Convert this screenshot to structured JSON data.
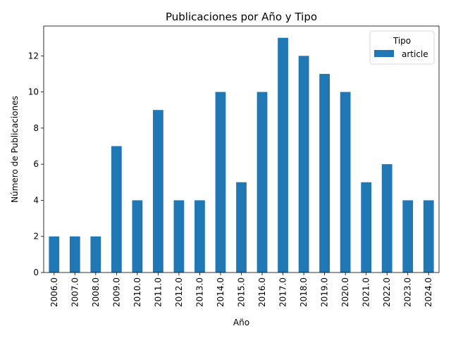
{
  "chart_data": {
    "type": "bar",
    "title": "Publicaciones por Año y Tipo",
    "xlabel": "Año",
    "ylabel": "Número de Publicaciones",
    "categories": [
      "2006.0",
      "2007.0",
      "2008.0",
      "2009.0",
      "2010.0",
      "2011.0",
      "2012.0",
      "2013.0",
      "2014.0",
      "2015.0",
      "2016.0",
      "2017.0",
      "2018.0",
      "2019.0",
      "2020.0",
      "2021.0",
      "2022.0",
      "2023.0",
      "2024.0"
    ],
    "series": [
      {
        "name": "article",
        "color": "#1f77b4",
        "values": [
          2,
          2,
          2,
          7,
          4,
          9,
          4,
          4,
          10,
          5,
          10,
          13,
          12,
          11,
          10,
          5,
          6,
          4,
          4
        ]
      }
    ],
    "yticks": [
      0,
      2,
      4,
      6,
      8,
      10,
      12
    ],
    "ylim": [
      0,
      13.65
    ],
    "legend": {
      "title": "Tipo",
      "position": "top-right"
    },
    "grid": false
  }
}
